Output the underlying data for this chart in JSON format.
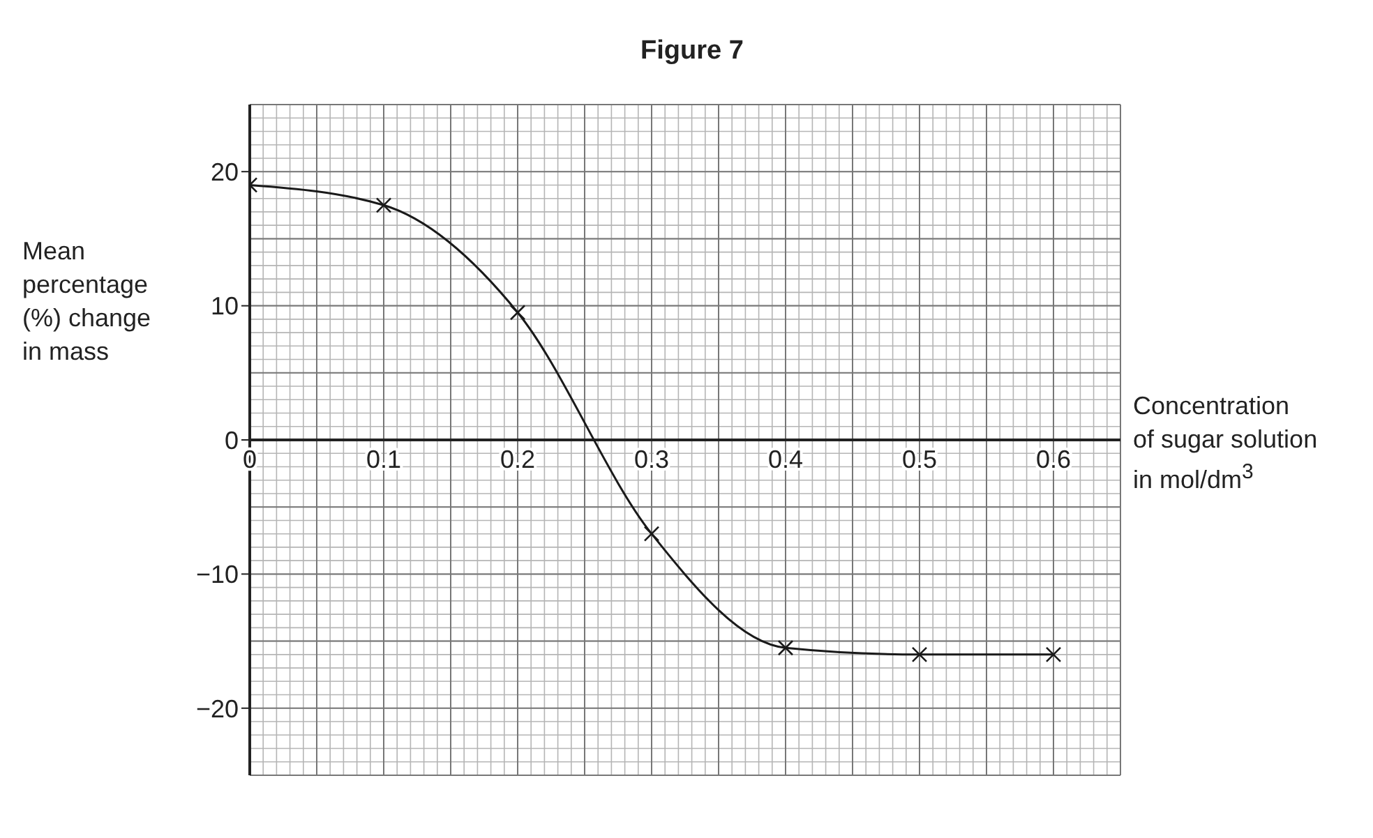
{
  "chart_data": {
    "type": "line",
    "title": "Figure 7",
    "xlabel": "Concentration\nof sugar solution\nin mol/dm$^{3}$",
    "ylabel": "Mean\npercentage\n(%) change\nin mass",
    "x": [
      0,
      0.1,
      0.2,
      0.3,
      0.4,
      0.5,
      0.6
    ],
    "series": [
      {
        "color": "#1a1a1a",
        "values": [
          19,
          17.5,
          9.5,
          -7,
          -15.5,
          -16,
          -16
        ]
      }
    ],
    "xlim": [
      0,
      0.65
    ],
    "xticks": [
      0,
      0.1,
      0.2,
      0.3,
      0.4,
      0.5,
      0.6
    ],
    "ylim": [
      -25,
      25
    ],
    "yticks": [
      -20,
      -10,
      0,
      10,
      20
    ],
    "grid": true,
    "marker": "cross",
    "line_style": "solid"
  }
}
